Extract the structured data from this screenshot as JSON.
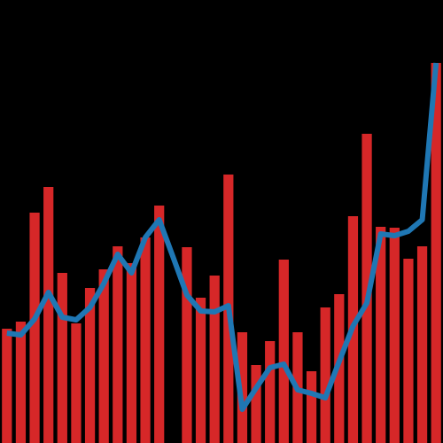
{
  "chart_data": {
    "type": "bar",
    "background": "#000000",
    "categories": [
      null,
      null,
      null,
      null,
      null,
      null,
      null,
      null,
      null,
      null,
      null,
      null,
      null,
      null,
      null,
      null,
      null,
      null,
      null,
      null,
      null,
      null,
      null,
      null,
      null,
      null,
      null,
      null,
      null,
      null,
      null,
      null
    ],
    "ylim": [
      0,
      500
    ],
    "series": [
      {
        "type": "bar",
        "color": "#d62728",
        "values": [
          129,
          137,
          260,
          289,
          192,
          135,
          175,
          196,
          222,
          203,
          232,
          268,
          0,
          221,
          164,
          189,
          303,
          125,
          88,
          115,
          207,
          125,
          81,
          153,
          168,
          256,
          349,
          244,
          243,
          208,
          222,
          429
        ]
      },
      {
        "type": "line",
        "color": "#1f77b4",
        "values": [
          124,
          122,
          140,
          170,
          142,
          139,
          153,
          180,
          213,
          192,
          232,
          252,
          210,
          167,
          149,
          148,
          155,
          38,
          62,
          85,
          89,
          60,
          56,
          51,
          92,
          132,
          158,
          236,
          234,
          239,
          252,
          429
        ]
      }
    ]
  }
}
